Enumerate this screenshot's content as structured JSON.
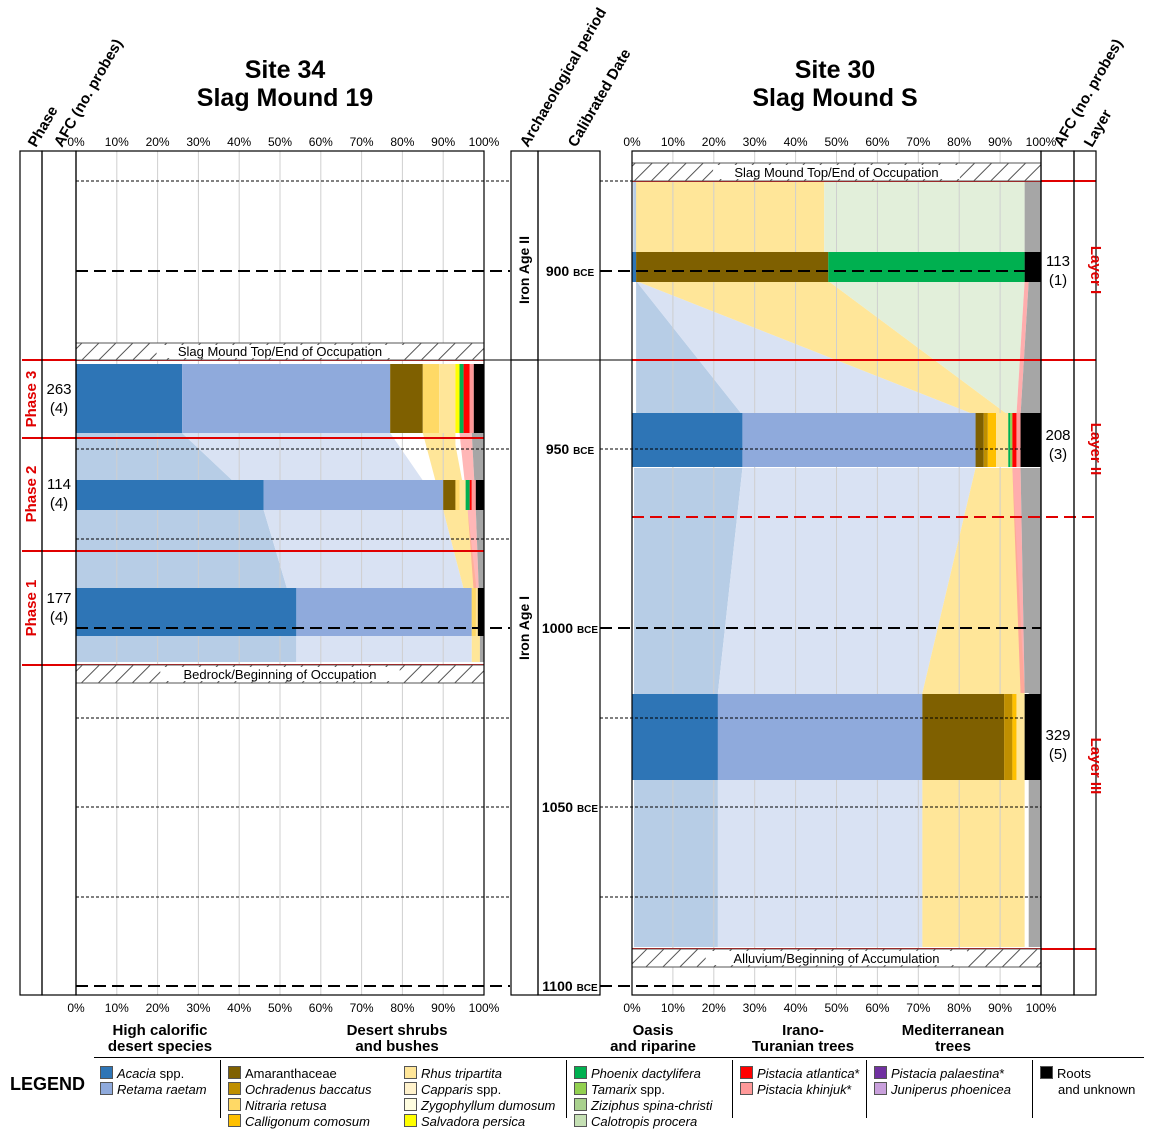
{
  "left_site": {
    "title_line1": "Site 34",
    "title_line2": "Slag Mound 19"
  },
  "right_site": {
    "title_line1": "Site 30",
    "title_line2": "Slag Mound S"
  },
  "column_headers": {
    "phase": "Phase",
    "afc_left": "AFC (no. probes)",
    "period": "Archaeological period",
    "date": "Calibrated Date",
    "afc_right": "AFC (no. probes)",
    "layer": "Layer"
  },
  "percent_ticks": [
    "0%",
    "10%",
    "20%",
    "30%",
    "40%",
    "50%",
    "60%",
    "70%",
    "80%",
    "90%",
    "100%"
  ],
  "periods": [
    "Iron Age II",
    "Iron Age I"
  ],
  "dates": [
    {
      "label": "900",
      "unit": "BCE"
    },
    {
      "label": "950",
      "unit": "BCE"
    },
    {
      "label": "1000",
      "unit": "BCE"
    },
    {
      "label": "1050",
      "unit": "BCE"
    },
    {
      "label": "1100",
      "unit": "BCE"
    }
  ],
  "hatch_labels": {
    "left_top": "Slag Mound Top/End of Occupation",
    "left_bottom": "Bedrock/Beginning of Occupation",
    "right_top": "Slag Mound Top/End of Occupation",
    "right_bottom": "Alluvium/Beginning of Accumulation"
  },
  "colors": {
    "acacia": "#2e75b6",
    "retama": "#8faadc",
    "amaranthaceae": "#7f6000",
    "ochradenus": "#bf8f00",
    "nitraria": "#ffd966",
    "calligonum": "#ffc000",
    "rhus": "#ffe699",
    "capparis": "#fff2cc",
    "zygophyllum": "#fffde0",
    "salvadora": "#ffff00",
    "phoenix": "#00b050",
    "tamarix": "#92d050",
    "ziziphus": "#a9d18e",
    "calotropis": "#c5e0b4",
    "pistacia_atlantica": "#ff0000",
    "pistacia_khinjuk": "#ff9999",
    "pistacia_palaestina": "#7030a0",
    "juniperus": "#c9a0dc",
    "roots": "#000000",
    "red_line": "#e00000"
  },
  "chart_data": [
    {
      "type": "bar",
      "title": "Site 34 Slag Mound 19",
      "orientation": "horizontal-stacked-percent",
      "xlim": [
        0,
        100
      ],
      "categories": [
        "Phase 3",
        "Phase 2",
        "Phase 1"
      ],
      "afc": [
        "263",
        "114",
        "177"
      ],
      "probes": [
        "(4)",
        "(4)",
        "(4)"
      ],
      "series": [
        {
          "name": "Acacia spp.",
          "values": [
            26,
            46,
            54
          ]
        },
        {
          "name": "Retama raetam",
          "values": [
            51,
            44,
            43
          ]
        },
        {
          "name": "Amaranthaceae",
          "values": [
            8,
            3,
            0
          ]
        },
        {
          "name": "Nitraria retusa",
          "values": [
            4,
            1,
            1
          ]
        },
        {
          "name": "Rhus tripartita",
          "values": [
            4,
            1.5,
            0.5
          ]
        },
        {
          "name": "Salvadora persica",
          "values": [
            1,
            0,
            0
          ]
        },
        {
          "name": "Phoenix dactylifera",
          "values": [
            1,
            1,
            0
          ]
        },
        {
          "name": "Pistacia atlantica*",
          "values": [
            1.5,
            0.5,
            0
          ]
        },
        {
          "name": "Pistacia khinjuk*",
          "values": [
            1,
            1,
            0
          ]
        },
        {
          "name": "Roots and unknown",
          "values": [
            2.5,
            2,
            1.5
          ]
        }
      ]
    },
    {
      "type": "bar",
      "title": "Site 30 Slag Mound S",
      "orientation": "horizontal-stacked-percent",
      "xlim": [
        0,
        100
      ],
      "categories": [
        "Layer I",
        "Layer II",
        "Layer III"
      ],
      "afc": [
        "113",
        "208",
        "329"
      ],
      "probes": [
        "(1)",
        "(3)",
        "(5)"
      ],
      "series": [
        {
          "name": "Acacia spp.",
          "values": [
            1,
            27,
            21
          ]
        },
        {
          "name": "Retama raetam",
          "values": [
            0,
            57,
            50
          ]
        },
        {
          "name": "Amaranthaceae",
          "values": [
            47,
            2,
            20
          ]
        },
        {
          "name": "Ochradenus baccatus",
          "values": [
            0,
            1,
            2
          ]
        },
        {
          "name": "Calligonum comosum",
          "values": [
            0,
            2,
            1
          ]
        },
        {
          "name": "Rhus tripartita",
          "values": [
            0,
            3,
            2
          ]
        },
        {
          "name": "Phoenix dactylifera",
          "values": [
            48,
            0.5,
            0
          ]
        },
        {
          "name": "Tamarix spp.",
          "values": [
            0,
            0.5,
            0
          ]
        },
        {
          "name": "Pistacia atlantica*",
          "values": [
            0,
            1,
            0
          ]
        },
        {
          "name": "Pistacia khinjuk*",
          "values": [
            0,
            1,
            0
          ]
        },
        {
          "name": "Roots and unknown",
          "values": [
            4,
            5,
            4
          ]
        }
      ]
    }
  ],
  "legend": {
    "title": "LEGEND",
    "groups": [
      {
        "header": [
          "High calorific",
          "desert species"
        ],
        "items": [
          {
            "label": "Acacia",
            "suffix": " spp.",
            "italic": true,
            "color": "#2e75b6"
          },
          {
            "label": "Retama raetam",
            "suffix": "",
            "italic": true,
            "color": "#8faadc"
          }
        ]
      },
      {
        "header": [
          "Desert shrubs",
          "and bushes"
        ],
        "items": [
          {
            "label": "Amaranthaceae",
            "suffix": "",
            "italic": false,
            "color": "#7f6000"
          },
          {
            "label": "Ochradenus baccatus",
            "suffix": "",
            "italic": true,
            "color": "#bf8f00"
          },
          {
            "label": "Nitraria retusa",
            "suffix": "",
            "italic": true,
            "color": "#ffd966"
          },
          {
            "label": "Calligonum comosum",
            "suffix": "",
            "italic": true,
            "color": "#ffc000"
          },
          {
            "label": "Rhus tripartita",
            "suffix": "",
            "italic": true,
            "color": "#ffe699"
          },
          {
            "label": "Capparis",
            "suffix": " spp.",
            "italic": true,
            "color": "#fff2cc"
          },
          {
            "label": "Zygophyllum dumosum",
            "suffix": "",
            "italic": true,
            "color": "#fffde0"
          },
          {
            "label": "Salvadora persica",
            "suffix": "",
            "italic": true,
            "color": "#ffff00"
          }
        ]
      },
      {
        "header": [
          "Oasis",
          "and riparine"
        ],
        "items": [
          {
            "label": "Phoenix dactylifera",
            "suffix": "",
            "italic": true,
            "color": "#00b050"
          },
          {
            "label": "Tamarix",
            "suffix": " spp.",
            "italic": true,
            "color": "#92d050"
          },
          {
            "label": "Ziziphus spina-christi",
            "suffix": "",
            "italic": true,
            "color": "#a9d18e"
          },
          {
            "label": "Calotropis procera",
            "suffix": "",
            "italic": true,
            "color": "#c5e0b4"
          }
        ]
      },
      {
        "header": [
          "Irano-",
          "Turanian trees"
        ],
        "items": [
          {
            "label": "Pistacia atlantica",
            "suffix": "*",
            "italic": true,
            "color": "#ff0000"
          },
          {
            "label": "Pistacia khinjuk",
            "suffix": "*",
            "italic": true,
            "color": "#ff9999"
          }
        ]
      },
      {
        "header": [
          "Mediterranean",
          "trees"
        ],
        "items": [
          {
            "label": "Pistacia palaestina",
            "suffix": "*",
            "italic": true,
            "color": "#7030a0"
          },
          {
            "label": "Juniperus phoenicea",
            "suffix": "",
            "italic": true,
            "color": "#c9a0dc"
          }
        ]
      },
      {
        "header": [
          "",
          ""
        ],
        "items": [
          {
            "label": "Roots",
            "suffix": "",
            "italic": false,
            "color": "#000000",
            "line2": "and unknown"
          }
        ]
      }
    ]
  }
}
